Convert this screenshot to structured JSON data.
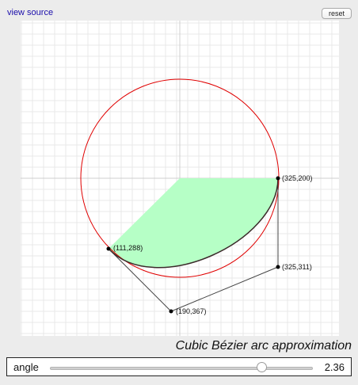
{
  "header": {
    "view_source": "view source",
    "reset": "reset"
  },
  "caption": "Cubic Bézier arc approximation",
  "control": {
    "label": "angle",
    "value": "2.36",
    "fraction": 0.8
  },
  "points": {
    "end": "(325,200)",
    "start": "(111,288)",
    "cp2": "(325,311)",
    "cp1": "(190,367)"
  },
  "colors": {
    "circle": "#e00000",
    "sector": "#b6ffc6",
    "arc": "#3b2a2a",
    "grid": "#e8e8e8",
    "axis": "#cfcfcf"
  }
}
